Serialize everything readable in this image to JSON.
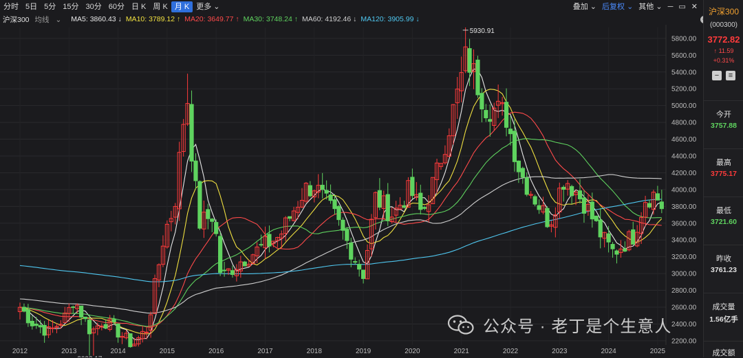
{
  "toolbar": {
    "items": [
      "分时",
      "5日",
      "5分",
      "15分",
      "30分",
      "60分",
      "日 K",
      "周 K",
      "月 K",
      "更多"
    ],
    "active_index": 8,
    "overlay_label": "叠加",
    "adjust_label": "后复权",
    "other_label": "其他"
  },
  "ma_bar": {
    "index_name": "沪深300",
    "type_label": "均线",
    "items": [
      {
        "text": "MA5: 3860.43 ↓",
        "color": "#e8e8e8"
      },
      {
        "text": "MA10: 3789.12 ↑",
        "color": "#f0e040"
      },
      {
        "text": "MA20: 3649.77 ↑",
        "color": "#ff4a4a"
      },
      {
        "text": "MA30: 3748.24 ↑",
        "color": "#5fd35f"
      },
      {
        "text": "MA60: 4192.46 ↓",
        "color": "#cfcfcf"
      },
      {
        "text": "MA120: 3905.99 ↓",
        "color": "#4fc7f0"
      }
    ]
  },
  "sidebar": {
    "name": "沪深300",
    "code": "(000300)",
    "price": "3772.82",
    "change": "↑ 11.59",
    "change_pct": "+0.31%",
    "open_label": "今开",
    "open_value": "3757.88",
    "high_label": "最高",
    "high_value": "3775.17",
    "low_label": "最低",
    "low_value": "3721.60",
    "prev_label": "昨收",
    "prev_value": "3761.23",
    "volume_label": "成交量",
    "volume_value": "1.56亿手",
    "amount_label": "成交额"
  },
  "watermark": {
    "text": "公众号 · 老丁是个生意人"
  },
  "colors": {
    "up": "#ff3b3b",
    "down": "#5fd35f",
    "accent": "#2f6fdc"
  },
  "chart_data": {
    "type": "candlestick",
    "x_ticks": [
      "2012",
      "2013",
      "2014",
      "2015",
      "2016",
      "2017",
      "2018",
      "2019",
      "2020",
      "2021",
      "2022",
      "2023",
      "2024",
      "2025"
    ],
    "y_ticks": [
      2200,
      2400,
      2600,
      2800,
      3000,
      3200,
      3400,
      3600,
      3800,
      4000,
      4200,
      4400,
      4600,
      4800,
      5000,
      5200,
      5400,
      5600,
      5800
    ],
    "ylim": [
      2150,
      5930
    ],
    "annotations": [
      {
        "label": "5930.91",
        "year": 2021.0,
        "value": 5930.91
      },
      {
        "label": "2023.17",
        "year": 2013.0,
        "value": 2023.17
      }
    ],
    "close_anchors": [
      [
        2012.0,
        2600
      ],
      [
        2012.25,
        2420
      ],
      [
        2012.6,
        2300
      ],
      [
        2012.95,
        2500
      ],
      [
        2013.1,
        2700
      ],
      [
        2013.45,
        2300
      ],
      [
        2013.7,
        2450
      ],
      [
        2013.95,
        2330
      ],
      [
        2014.3,
        2150
      ],
      [
        2014.6,
        2350
      ],
      [
        2014.95,
        3500
      ],
      [
        2015.15,
        3800
      ],
      [
        2015.4,
        5200
      ],
      [
        2015.5,
        4470
      ],
      [
        2015.65,
        3600
      ],
      [
        2015.95,
        3700
      ],
      [
        2016.1,
        2950
      ],
      [
        2016.5,
        3150
      ],
      [
        2016.9,
        3300
      ],
      [
        2017.3,
        3450
      ],
      [
        2017.8,
        4000
      ],
      [
        2018.0,
        4050
      ],
      [
        2018.4,
        3700
      ],
      [
        2018.9,
        3100
      ],
      [
        2019.0,
        3000
      ],
      [
        2019.25,
        3900
      ],
      [
        2019.6,
        3700
      ],
      [
        2019.95,
        4000
      ],
      [
        2020.2,
        3700
      ],
      [
        2020.5,
        4200
      ],
      [
        2020.95,
        5200
      ],
      [
        2021.1,
        5600
      ],
      [
        2021.5,
        5000
      ],
      [
        2021.9,
        4900
      ],
      [
        2022.2,
        4200
      ],
      [
        2022.4,
        4000
      ],
      [
        2022.8,
        3600
      ],
      [
        2022.95,
        3900
      ],
      [
        2023.1,
        4150
      ],
      [
        2023.5,
        3850
      ],
      [
        2023.9,
        3400
      ],
      [
        2024.1,
        3250
      ],
      [
        2024.5,
        3450
      ],
      [
        2024.75,
        3900
      ],
      [
        2024.95,
        3950
      ],
      [
        2025.1,
        3772
      ]
    ],
    "series": [
      {
        "name": "MA5",
        "period": 5,
        "color": "#e8e8e8"
      },
      {
        "name": "MA10",
        "period": 10,
        "color": "#f0e040"
      },
      {
        "name": "MA20",
        "period": 20,
        "color": "#ff4a4a"
      },
      {
        "name": "MA30",
        "period": 30,
        "color": "#5fd35f"
      },
      {
        "name": "MA60",
        "period": 60,
        "color": "#cfcfcf"
      },
      {
        "name": "MA120",
        "period": 120,
        "color": "#4fc7f0"
      }
    ]
  }
}
